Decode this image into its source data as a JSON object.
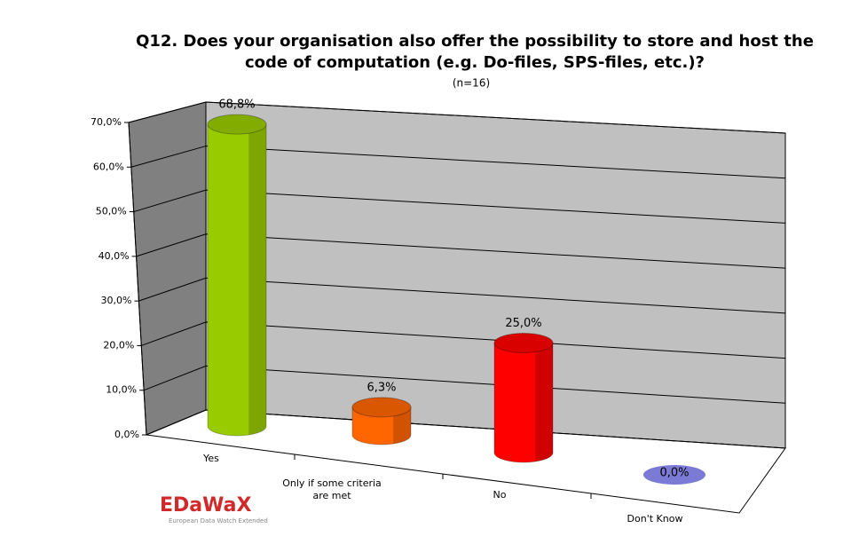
{
  "chart_data": {
    "type": "bar3d",
    "title_lines": [
      "Q12. Does your organisation also offer the possibility to store and host the",
      "code of computation (e.g. Do-files, SPS-files, etc.)?"
    ],
    "subtitle": "(n=16)",
    "categories": [
      "Yes",
      "Only if some criteria are met",
      "No",
      "Don't Know"
    ],
    "values": [
      68.8,
      6.3,
      25.0,
      0.0
    ],
    "value_labels": [
      "68,8%",
      "6,3%",
      "25,0%",
      "0,0%"
    ],
    "colors": [
      "#99cc00",
      "#ff6600",
      "#ff0000",
      "#7b7bd6"
    ],
    "ylim": [
      0,
      70
    ],
    "yticks": [
      {
        "value": 0,
        "label": "0,0%"
      },
      {
        "value": 10,
        "label": "10,0%"
      },
      {
        "value": 20,
        "label": "20,0%"
      },
      {
        "value": 30,
        "label": "30,0%"
      },
      {
        "value": 40,
        "label": "40,0%"
      },
      {
        "value": 50,
        "label": "50,0%"
      },
      {
        "value": 60,
        "label": "60,0%"
      },
      {
        "value": 70,
        "label": "70,0%"
      }
    ],
    "grid": true
  },
  "logo": {
    "name": "EDaWaX",
    "tagline": "European Data Watch Extended"
  }
}
